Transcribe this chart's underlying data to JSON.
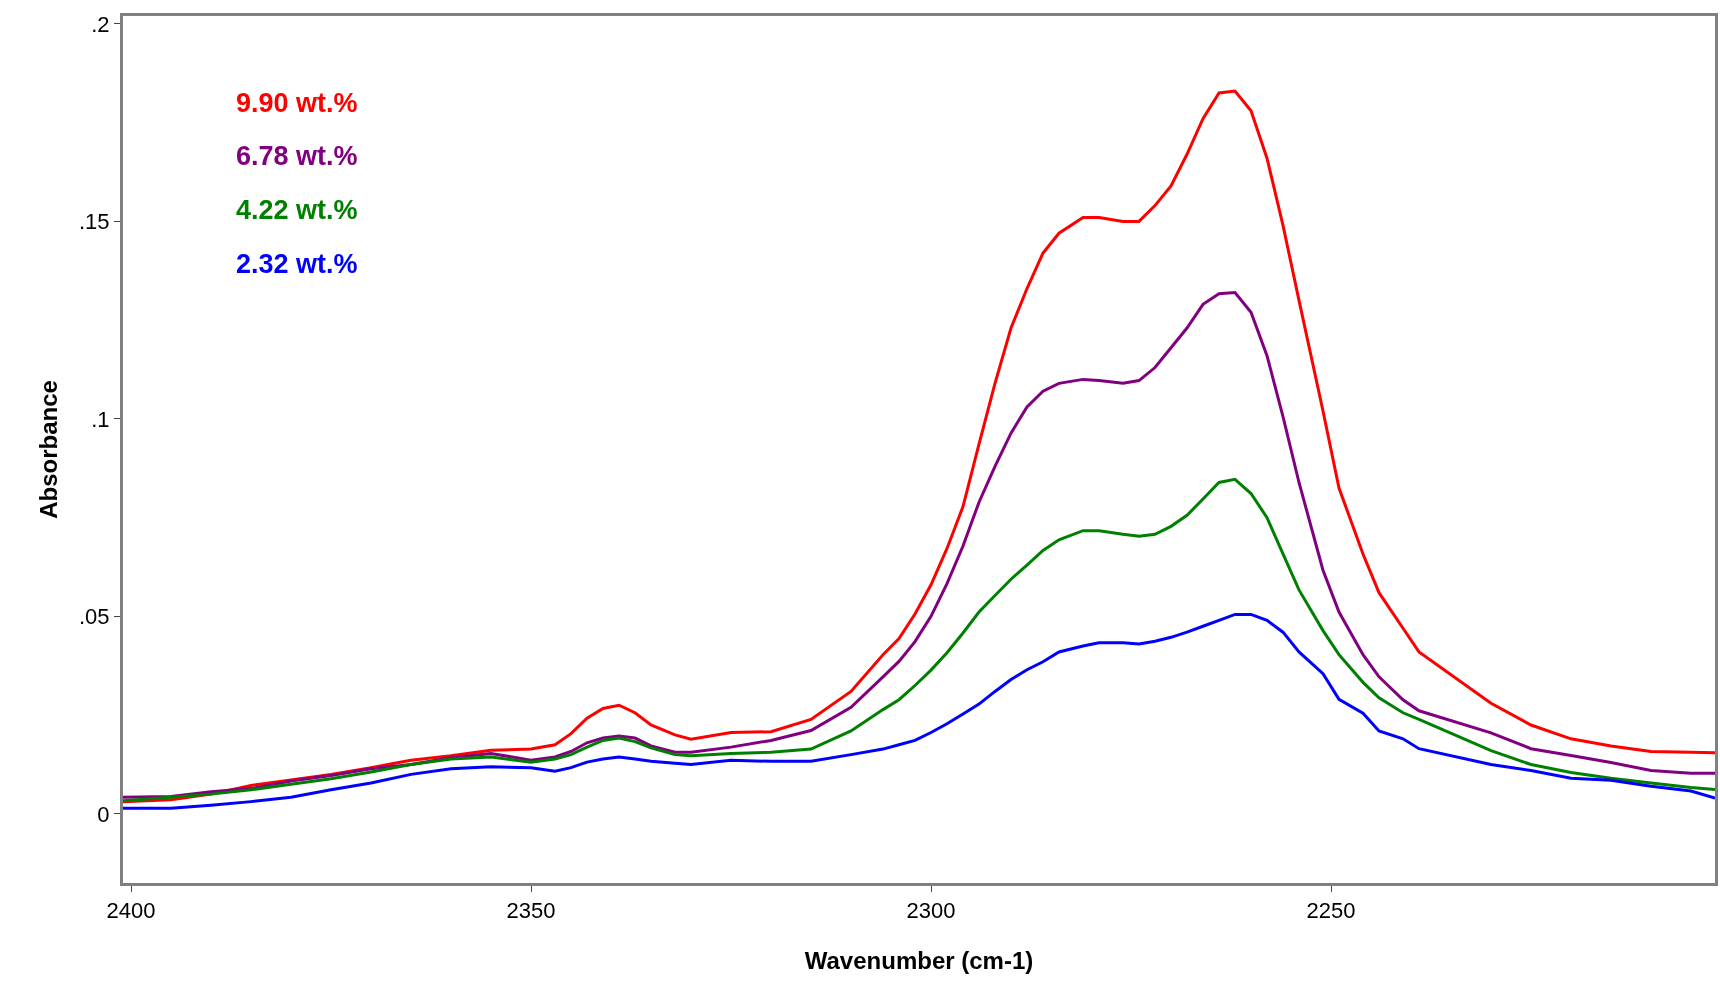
{
  "chart_data": {
    "type": "line",
    "xlabel": "Wavenumber (cm-1)",
    "ylabel": "Absorbance",
    "x": [
      2401,
      2395,
      2390,
      2385,
      2380,
      2375,
      2370,
      2365,
      2360,
      2355,
      2350,
      2347,
      2345,
      2343,
      2341,
      2339,
      2337,
      2335,
      2332,
      2330,
      2325,
      2320,
      2315,
      2310,
      2306,
      2304,
      2302,
      2300,
      2298,
      2296,
      2294,
      2292,
      2290,
      2288,
      2286,
      2284,
      2281,
      2279,
      2276,
      2274,
      2272,
      2270,
      2268,
      2266,
      2264,
      2262,
      2260,
      2258,
      2256,
      2254,
      2251,
      2249,
      2246,
      2244,
      2241,
      2239,
      2230,
      2225,
      2220,
      2215,
      2210,
      2205,
      2202
    ],
    "series": [
      {
        "name": "9.90 wt.%",
        "color": "#ff0000",
        "values": [
          0.0031,
          0.0036,
          0.005,
          0.0072,
          0.0086,
          0.01,
          0.0117,
          0.0136,
          0.0147,
          0.0161,
          0.0164,
          0.0175,
          0.0203,
          0.0242,
          0.0267,
          0.0275,
          0.0256,
          0.0225,
          0.02,
          0.0189,
          0.0206,
          0.0208,
          0.0239,
          0.031,
          0.0403,
          0.0444,
          0.0506,
          0.058,
          0.0672,
          0.0778,
          0.0936,
          0.109,
          0.123,
          0.133,
          0.142,
          0.147,
          0.151,
          0.151,
          0.15,
          0.15,
          0.154,
          0.159,
          0.167,
          0.176,
          0.1825,
          0.183,
          0.178,
          0.166,
          0.149,
          0.13,
          0.102,
          0.0825,
          0.0658,
          0.056,
          0.047,
          0.041,
          0.028,
          0.0225,
          0.019,
          0.0172,
          0.0158,
          0.0156,
          0.0155
        ]
      },
      {
        "name": "6.78 wt.%",
        "color": "#800080",
        "values": [
          0.0042,
          0.0044,
          0.0056,
          0.0064,
          0.0083,
          0.0097,
          0.0114,
          0.0125,
          0.0142,
          0.0153,
          0.0136,
          0.0144,
          0.0158,
          0.018,
          0.0192,
          0.0197,
          0.0192,
          0.0172,
          0.0156,
          0.0156,
          0.0169,
          0.0186,
          0.0211,
          0.027,
          0.0347,
          0.0386,
          0.0436,
          0.05,
          0.0583,
          0.0678,
          0.0789,
          0.088,
          0.0964,
          0.103,
          0.107,
          0.109,
          0.11,
          0.1097,
          0.109,
          0.1097,
          0.113,
          0.118,
          0.123,
          0.129,
          0.1317,
          0.132,
          0.127,
          0.116,
          0.1006,
          0.0839,
          0.0617,
          0.0511,
          0.0403,
          0.0347,
          0.0289,
          0.0261,
          0.0205,
          0.0165,
          0.0148,
          0.013,
          0.011,
          0.0103,
          0.0103
        ]
      },
      {
        "name": "4.22 wt.%",
        "color": "#008000",
        "values": [
          0.0033,
          0.0042,
          0.005,
          0.0061,
          0.0075,
          0.0089,
          0.0106,
          0.0125,
          0.0139,
          0.0144,
          0.0131,
          0.0139,
          0.015,
          0.0169,
          0.0186,
          0.0192,
          0.0183,
          0.0167,
          0.015,
          0.0147,
          0.0153,
          0.0156,
          0.0164,
          0.021,
          0.0264,
          0.0289,
          0.0325,
          0.0364,
          0.0408,
          0.0458,
          0.0511,
          0.0553,
          0.0594,
          0.063,
          0.0667,
          0.0694,
          0.0717,
          0.0717,
          0.0708,
          0.0703,
          0.0708,
          0.0728,
          0.0756,
          0.0797,
          0.0839,
          0.0847,
          0.0811,
          0.075,
          0.0658,
          0.0567,
          0.0464,
          0.0403,
          0.0333,
          0.0294,
          0.0256,
          0.0239,
          0.016,
          0.0125,
          0.0105,
          0.009,
          0.0078,
          0.0067,
          0.0062
        ]
      },
      {
        "name": "2.32 wt.%",
        "color": "#0000ff",
        "values": [
          0.0014,
          0.0014,
          0.0022,
          0.0031,
          0.0042,
          0.0061,
          0.0078,
          0.01,
          0.0114,
          0.0119,
          0.0117,
          0.0108,
          0.0117,
          0.0131,
          0.0139,
          0.0144,
          0.0139,
          0.0133,
          0.0128,
          0.0125,
          0.0136,
          0.0133,
          0.0133,
          0.015,
          0.0164,
          0.0175,
          0.0186,
          0.0206,
          0.0228,
          0.0253,
          0.0278,
          0.031,
          0.034,
          0.0365,
          0.0385,
          0.041,
          0.0425,
          0.0433,
          0.0433,
          0.043,
          0.0437,
          0.0447,
          0.046,
          0.0475,
          0.049,
          0.0505,
          0.0505,
          0.049,
          0.046,
          0.041,
          0.0355,
          0.029,
          0.0255,
          0.021,
          0.019,
          0.0165,
          0.0125,
          0.011,
          0.009,
          0.0085,
          0.007,
          0.0058,
          0.004
        ]
      }
    ],
    "xlim": [
      2401,
      2202
    ],
    "xticks": [
      2400,
      2350,
      2300,
      2250
    ],
    "ylim": [
      -0.0175,
      0.202
    ],
    "yticks": [
      {
        "value": 0,
        "label": "0"
      },
      {
        "value": 0.05,
        "label": ".05"
      },
      {
        "value": 0.1,
        "label": ".1"
      },
      {
        "value": 0.15,
        "label": ".15"
      },
      {
        "value": 0.2,
        "label": ".2"
      }
    ],
    "legend": false,
    "line_style": "solid",
    "marker": "none"
  }
}
